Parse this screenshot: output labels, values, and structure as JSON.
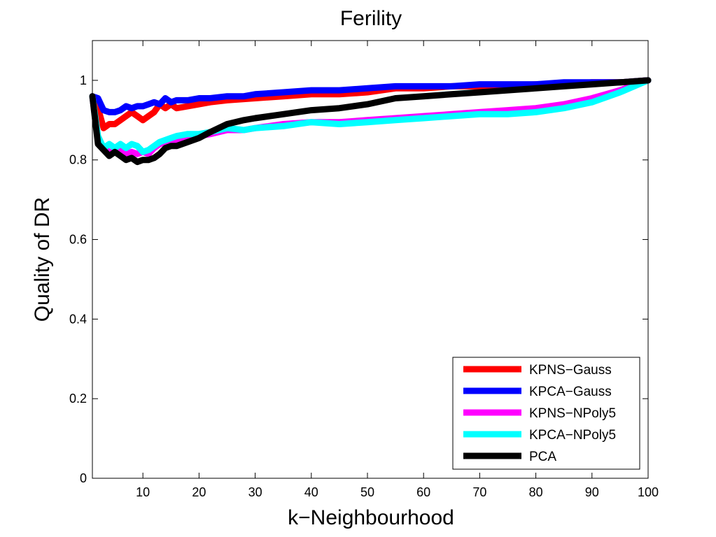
{
  "chart_data": {
    "type": "line",
    "title": "Ferility",
    "xlabel": "k−Neighbourhood",
    "ylabel": "Quality of DR",
    "xlim": [
      1,
      100
    ],
    "ylim": [
      0,
      1.1
    ],
    "xticks": [
      10,
      20,
      30,
      40,
      50,
      60,
      70,
      80,
      90,
      100
    ],
    "yticks": [
      0,
      0.2,
      0.4,
      0.6,
      0.8,
      1
    ],
    "ytick_labels": [
      "0",
      "0.2",
      "0.4",
      "0.6",
      "0.8",
      "1"
    ],
    "grid": false,
    "legend_position": "bottom-right",
    "series": [
      {
        "name": "KPNS−Gauss",
        "color": "#ff0000",
        "points": [
          [
            1,
            0.96
          ],
          [
            2,
            0.93
          ],
          [
            3,
            0.88
          ],
          [
            4,
            0.89
          ],
          [
            5,
            0.89
          ],
          [
            6,
            0.9
          ],
          [
            7,
            0.91
          ],
          [
            8,
            0.92
          ],
          [
            9,
            0.91
          ],
          [
            10,
            0.9
          ],
          [
            11,
            0.91
          ],
          [
            12,
            0.92
          ],
          [
            13,
            0.94
          ],
          [
            14,
            0.93
          ],
          [
            15,
            0.94
          ],
          [
            16,
            0.93
          ],
          [
            18,
            0.935
          ],
          [
            20,
            0.94
          ],
          [
            22,
            0.945
          ],
          [
            25,
            0.95
          ],
          [
            30,
            0.955
          ],
          [
            35,
            0.96
          ],
          [
            40,
            0.965
          ],
          [
            45,
            0.965
          ],
          [
            50,
            0.97
          ],
          [
            55,
            0.98
          ],
          [
            60,
            0.98
          ],
          [
            65,
            0.985
          ],
          [
            70,
            0.985
          ],
          [
            75,
            0.985
          ],
          [
            80,
            0.99
          ],
          [
            85,
            0.99
          ],
          [
            90,
            0.995
          ],
          [
            95,
            0.995
          ],
          [
            100,
            1.0
          ]
        ]
      },
      {
        "name": "KPCA−Gauss",
        "color": "#0000ff",
        "points": [
          [
            1,
            0.96
          ],
          [
            2,
            0.955
          ],
          [
            3,
            0.925
          ],
          [
            4,
            0.92
          ],
          [
            5,
            0.92
          ],
          [
            6,
            0.925
          ],
          [
            7,
            0.935
          ],
          [
            8,
            0.93
          ],
          [
            9,
            0.935
          ],
          [
            10,
            0.935
          ],
          [
            11,
            0.94
          ],
          [
            12,
            0.945
          ],
          [
            13,
            0.94
          ],
          [
            14,
            0.955
          ],
          [
            15,
            0.945
          ],
          [
            16,
            0.95
          ],
          [
            18,
            0.95
          ],
          [
            20,
            0.955
          ],
          [
            22,
            0.955
          ],
          [
            25,
            0.96
          ],
          [
            28,
            0.96
          ],
          [
            30,
            0.965
          ],
          [
            35,
            0.97
          ],
          [
            40,
            0.975
          ],
          [
            45,
            0.975
          ],
          [
            50,
            0.98
          ],
          [
            55,
            0.985
          ],
          [
            60,
            0.985
          ],
          [
            65,
            0.985
          ],
          [
            70,
            0.99
          ],
          [
            75,
            0.99
          ],
          [
            80,
            0.99
          ],
          [
            85,
            0.995
          ],
          [
            90,
            0.995
          ],
          [
            95,
            0.995
          ],
          [
            100,
            1.0
          ]
        ]
      },
      {
        "name": "KPNS−NPoly5",
        "color": "#ff00ff",
        "points": [
          [
            1,
            0.96
          ],
          [
            2,
            0.85
          ],
          [
            3,
            0.83
          ],
          [
            4,
            0.82
          ],
          [
            5,
            0.82
          ],
          [
            6,
            0.825
          ],
          [
            7,
            0.815
          ],
          [
            8,
            0.82
          ],
          [
            9,
            0.815
          ],
          [
            10,
            0.82
          ],
          [
            11,
            0.815
          ],
          [
            12,
            0.83
          ],
          [
            13,
            0.84
          ],
          [
            14,
            0.845
          ],
          [
            15,
            0.845
          ],
          [
            16,
            0.85
          ],
          [
            18,
            0.855
          ],
          [
            20,
            0.86
          ],
          [
            22,
            0.865
          ],
          [
            25,
            0.875
          ],
          [
            28,
            0.875
          ],
          [
            30,
            0.88
          ],
          [
            35,
            0.89
          ],
          [
            40,
            0.895
          ],
          [
            45,
            0.895
          ],
          [
            50,
            0.9
          ],
          [
            55,
            0.905
          ],
          [
            60,
            0.91
          ],
          [
            65,
            0.915
          ],
          [
            70,
            0.92
          ],
          [
            75,
            0.925
          ],
          [
            80,
            0.93
          ],
          [
            85,
            0.94
          ],
          [
            90,
            0.955
          ],
          [
            95,
            0.975
          ],
          [
            100,
            1.0
          ]
        ]
      },
      {
        "name": "KPCA−NPoly5",
        "color": "#00ffff",
        "points": [
          [
            1,
            0.96
          ],
          [
            2,
            0.86
          ],
          [
            3,
            0.83
          ],
          [
            4,
            0.84
          ],
          [
            5,
            0.83
          ],
          [
            6,
            0.84
          ],
          [
            7,
            0.83
          ],
          [
            8,
            0.84
          ],
          [
            9,
            0.835
          ],
          [
            10,
            0.82
          ],
          [
            11,
            0.825
          ],
          [
            12,
            0.835
          ],
          [
            13,
            0.845
          ],
          [
            14,
            0.85
          ],
          [
            15,
            0.855
          ],
          [
            16,
            0.86
          ],
          [
            18,
            0.865
          ],
          [
            20,
            0.865
          ],
          [
            22,
            0.87
          ],
          [
            25,
            0.88
          ],
          [
            28,
            0.875
          ],
          [
            30,
            0.88
          ],
          [
            35,
            0.885
          ],
          [
            40,
            0.895
          ],
          [
            45,
            0.89
          ],
          [
            50,
            0.895
          ],
          [
            55,
            0.9
          ],
          [
            60,
            0.905
          ],
          [
            65,
            0.91
          ],
          [
            70,
            0.915
          ],
          [
            75,
            0.915
          ],
          [
            80,
            0.92
          ],
          [
            85,
            0.93
          ],
          [
            90,
            0.945
          ],
          [
            95,
            0.97
          ],
          [
            100,
            1.0
          ]
        ]
      },
      {
        "name": "PCA",
        "color": "#000000",
        "points": [
          [
            1,
            0.96
          ],
          [
            2,
            0.84
          ],
          [
            3,
            0.825
          ],
          [
            4,
            0.81
          ],
          [
            5,
            0.82
          ],
          [
            6,
            0.81
          ],
          [
            7,
            0.8
          ],
          [
            8,
            0.805
          ],
          [
            9,
            0.795
          ],
          [
            10,
            0.8
          ],
          [
            11,
            0.8
          ],
          [
            12,
            0.805
          ],
          [
            13,
            0.815
          ],
          [
            14,
            0.83
          ],
          [
            15,
            0.835
          ],
          [
            16,
            0.835
          ],
          [
            18,
            0.845
          ],
          [
            20,
            0.855
          ],
          [
            22,
            0.87
          ],
          [
            25,
            0.89
          ],
          [
            28,
            0.9
          ],
          [
            30,
            0.905
          ],
          [
            35,
            0.915
          ],
          [
            40,
            0.925
          ],
          [
            45,
            0.93
          ],
          [
            50,
            0.94
          ],
          [
            55,
            0.955
          ],
          [
            60,
            0.96
          ],
          [
            65,
            0.965
          ],
          [
            70,
            0.97
          ],
          [
            75,
            0.975
          ],
          [
            80,
            0.98
          ],
          [
            85,
            0.985
          ],
          [
            90,
            0.99
          ],
          [
            95,
            0.995
          ],
          [
            100,
            1.0
          ]
        ]
      }
    ]
  }
}
